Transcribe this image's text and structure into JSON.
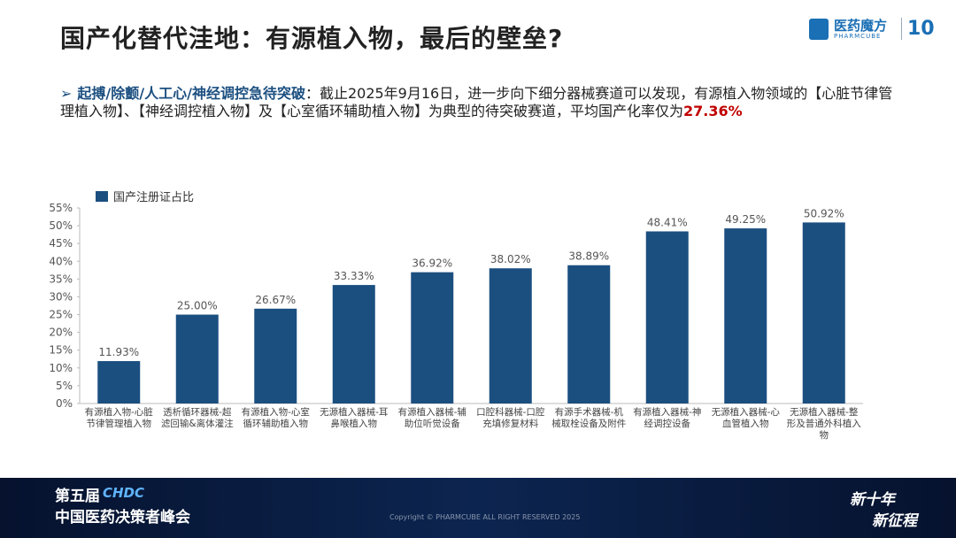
{
  "header": {
    "title": "国产化替代洼地：有源植入物，最后的壁垒?",
    "logo_brand": "医药魔方",
    "logo_sub": "PHARMCUBE",
    "logo_badge": "10"
  },
  "bullet": {
    "marker": "➢",
    "highlight": "起搏/除颤/人工心/神经调控急待突破",
    "text": "：截止2025年9月16日，进一步向下细分器械赛道可以发现，有源植入物领域的【心脏节律管理植入物】、【神经调控植入物】及【心室循环辅助植入物】为典型的待突破赛道，平均国产化率仅为",
    "emphasis": "27.36%"
  },
  "chart_data": {
    "type": "bar",
    "categories": [
      "有源植入物-心脏节律管理植入物",
      "透析循环器械-超滤回输&离体灌注",
      "有源植入物-心室循环辅助植入物",
      "无源植入器械-耳鼻喉植入物",
      "有源植入器械-辅助位听觉设备",
      "口腔科器械-口腔充填修复材料",
      "有源手术器械-机械取栓设备及附件",
      "有源植入器械-神经调控设备",
      "无源植入器械-心血管植入物",
      "无源植入器械-整形及普通外科植入物"
    ],
    "series": [
      {
        "name": "国产注册证占比",
        "color": "#1b4f80",
        "values": [
          11.93,
          25.0,
          26.67,
          33.33,
          36.92,
          38.02,
          38.89,
          48.41,
          49.25,
          50.92
        ],
        "value_labels": [
          "11.93%",
          "25.00%",
          "26.67%",
          "33.33%",
          "36.92%",
          "38.02%",
          "38.89%",
          "48.41%",
          "49.25%",
          "50.92%"
        ]
      }
    ],
    "ylim": [
      0,
      55
    ],
    "yticks": [
      {
        "value": 0,
        "label": "0%"
      },
      {
        "value": 5,
        "label": "5%"
      },
      {
        "value": 10,
        "label": "10%"
      },
      {
        "value": 15,
        "label": "15%"
      },
      {
        "value": 20,
        "label": "20%"
      },
      {
        "value": 25,
        "label": "25%"
      },
      {
        "value": 30,
        "label": "30%"
      },
      {
        "value": 35,
        "label": "35%"
      },
      {
        "value": 40,
        "label": "40%"
      },
      {
        "value": 45,
        "label": "45%"
      },
      {
        "value": 50,
        "label": "50%"
      },
      {
        "value": 55,
        "label": "55%"
      }
    ],
    "legend": "top-left"
  },
  "footer": {
    "edition": "第五届",
    "brand": "CHDC",
    "summit": "中国医药决策者峰会",
    "copyright": "Copyright © PHARMCUBE ALL RIGHT RESERVED 2025",
    "slogan_1": "新十年",
    "slogan_2": "新征程"
  }
}
